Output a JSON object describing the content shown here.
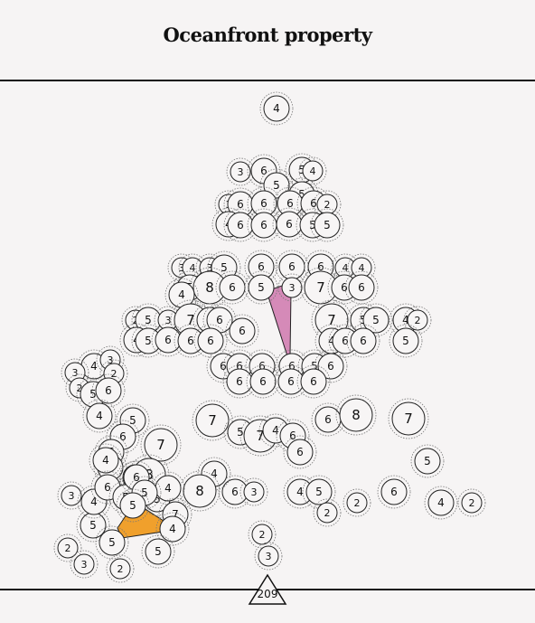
{
  "header": {
    "title": "Oceanfront property"
  },
  "counter": {
    "value": "209"
  },
  "colors": {
    "background": "#f6f4f4",
    "line": "#111111",
    "orange_tile": "#f0a02c",
    "pink_tile": "#d58ab8",
    "cell_fill": "#f7f5f5"
  },
  "board": {
    "cells": [
      {
        "n": 4,
        "s": "m"
      },
      {
        "n": 3,
        "s": "s"
      },
      {
        "n": 6,
        "s": "m"
      },
      {
        "n": 5,
        "s": "m"
      },
      {
        "n": 4,
        "s": "s"
      },
      {
        "n": 5,
        "s": "m"
      },
      {
        "n": 5,
        "s": "m"
      },
      {
        "n": 3,
        "s": "s"
      },
      {
        "n": 6,
        "s": "m"
      },
      {
        "n": 6,
        "s": "m"
      },
      {
        "n": 6,
        "s": "m"
      },
      {
        "n": 6,
        "s": "m"
      },
      {
        "n": 2,
        "s": "s"
      },
      {
        "n": 4,
        "s": "m"
      },
      {
        "n": 6,
        "s": "m"
      },
      {
        "n": 6,
        "s": "m"
      },
      {
        "n": 6,
        "s": "m"
      },
      {
        "n": 5,
        "s": "m"
      },
      {
        "n": 5,
        "s": "m"
      },
      {
        "n": 3,
        "s": "s"
      },
      {
        "n": 4,
        "s": "s"
      },
      {
        "n": 3,
        "s": "s"
      },
      {
        "n": 5,
        "s": "m"
      },
      {
        "n": 6,
        "s": "m"
      },
      {
        "n": 6,
        "s": "m"
      },
      {
        "n": 6,
        "s": "m"
      },
      {
        "n": 4,
        "s": "s"
      },
      {
        "n": 4,
        "s": "s"
      },
      {
        "n": 5,
        "s": "m"
      },
      {
        "n": 8,
        "s": "l"
      },
      {
        "n": 6,
        "s": "m"
      },
      {
        "n": 4,
        "s": "m"
      },
      {
        "n": 5,
        "s": "m"
      },
      {
        "n": 3,
        "s": "s"
      },
      {
        "n": 7,
        "s": "l"
      },
      {
        "n": 6,
        "s": "m"
      },
      {
        "n": 6,
        "s": "m"
      },
      {
        "n": 2,
        "s": "s"
      },
      {
        "n": 5,
        "s": "m"
      },
      {
        "n": 3,
        "s": "s"
      },
      {
        "n": 7,
        "s": "l"
      },
      {
        "n": 5,
        "s": "m"
      },
      {
        "n": 6,
        "s": "m"
      },
      {
        "n": 7,
        "s": "l"
      },
      {
        "n": 5,
        "s": "m"
      },
      {
        "n": 5,
        "s": "m"
      },
      {
        "n": 4,
        "s": "m"
      },
      {
        "n": 2,
        "s": "s"
      },
      {
        "n": 4,
        "s": "m"
      },
      {
        "n": 5,
        "s": "m"
      },
      {
        "n": 6,
        "s": "m"
      },
      {
        "n": 6,
        "s": "m"
      },
      {
        "n": 6,
        "s": "m"
      },
      {
        "n": 6,
        "s": "m"
      },
      {
        "n": 4,
        "s": "m"
      },
      {
        "n": 6,
        "s": "m"
      },
      {
        "n": 6,
        "s": "m"
      },
      {
        "n": 5,
        "s": "m"
      },
      {
        "n": 4,
        "s": "m"
      },
      {
        "n": 3,
        "s": "s"
      },
      {
        "n": 3,
        "s": "s"
      },
      {
        "n": 2,
        "s": "s"
      },
      {
        "n": 2,
        "s": "s"
      },
      {
        "n": 5,
        "s": "m"
      },
      {
        "n": 6,
        "s": "m"
      },
      {
        "n": 6,
        "s": "m"
      },
      {
        "n": 6,
        "s": "m"
      },
      {
        "n": 6,
        "s": "m"
      },
      {
        "n": 6,
        "s": "m"
      },
      {
        "n": 5,
        "s": "m"
      },
      {
        "n": 6,
        "s": "m"
      },
      {
        "n": 6,
        "s": "m"
      },
      {
        "n": 6,
        "s": "m"
      },
      {
        "n": 6,
        "s": "m"
      },
      {
        "n": 6,
        "s": "m"
      },
      {
        "n": 4,
        "s": "m"
      },
      {
        "n": 5,
        "s": "m"
      },
      {
        "n": 6,
        "s": "m"
      },
      {
        "n": 7,
        "s": "l"
      },
      {
        "n": 5,
        "s": "m"
      },
      {
        "n": 7,
        "s": "l"
      },
      {
        "n": 4,
        "s": "m"
      },
      {
        "n": 6,
        "s": "m"
      },
      {
        "n": 6,
        "s": "m"
      },
      {
        "n": 6,
        "s": "m"
      },
      {
        "n": 8,
        "s": "l"
      },
      {
        "n": 7,
        "s": "l"
      },
      {
        "n": 5,
        "s": "m"
      },
      {
        "n": 7,
        "s": "l"
      },
      {
        "n": 6,
        "s": "m"
      },
      {
        "n": 5,
        "s": "m"
      },
      {
        "n": 4,
        "s": "m"
      },
      {
        "n": 6,
        "s": "m"
      },
      {
        "n": 8,
        "s": "l"
      },
      {
        "n": 6,
        "s": "m"
      },
      {
        "n": 3,
        "s": "s"
      },
      {
        "n": 4,
        "s": "m"
      },
      {
        "n": 4,
        "s": "m"
      },
      {
        "n": 5,
        "s": "m"
      },
      {
        "n": 2,
        "s": "s"
      },
      {
        "n": 2,
        "s": "s"
      },
      {
        "n": 6,
        "s": "m"
      },
      {
        "n": 4,
        "s": "m"
      },
      {
        "n": 2,
        "s": "s"
      },
      {
        "n": 5,
        "s": "m"
      },
      {
        "n": 3,
        "s": "s"
      },
      {
        "n": 4,
        "s": "m"
      },
      {
        "n": 6,
        "s": "m"
      },
      {
        "n": 5,
        "s": "m"
      },
      {
        "n": 6,
        "s": "m"
      },
      {
        "n": 8,
        "s": "l"
      },
      {
        "n": 5,
        "s": "m"
      },
      {
        "n": 4,
        "s": "m"
      },
      {
        "n": 5,
        "s": "m"
      },
      {
        "n": 7,
        "s": "m"
      },
      {
        "n": 5,
        "s": "m"
      },
      {
        "n": 4,
        "s": "m"
      },
      {
        "n": 5,
        "s": "m"
      },
      {
        "n": 2,
        "s": "s"
      },
      {
        "n": 3,
        "s": "s"
      },
      {
        "n": 2,
        "s": "s"
      },
      {
        "n": 5,
        "s": "m"
      },
      {
        "n": 2,
        "s": "s"
      },
      {
        "n": 3,
        "s": "s"
      }
    ]
  }
}
